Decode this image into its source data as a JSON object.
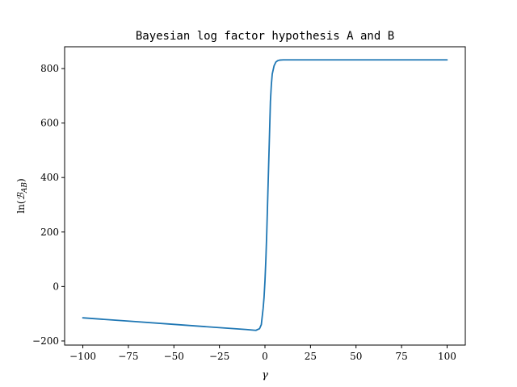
{
  "chart_data": {
    "type": "line",
    "title": "Bayesian log factor hypothesis A and B",
    "xlabel": "γ",
    "ylabel": "ln(ℬAB)",
    "ylabel_parts": {
      "prefix": "ln(",
      "symbol": "ℬ",
      "subscript": "AB",
      "suffix": ")"
    },
    "xlim": [
      -110,
      110
    ],
    "ylim": [
      -215,
      880
    ],
    "x_ticks": [
      -100,
      -75,
      -50,
      -25,
      0,
      25,
      50,
      75,
      100
    ],
    "x_tick_labels": [
      "−100",
      "−75",
      "−50",
      "−25",
      "0",
      "25",
      "50",
      "75",
      "100"
    ],
    "y_ticks": [
      -200,
      0,
      200,
      400,
      600,
      800
    ],
    "y_tick_labels": [
      "−200",
      "0",
      "200",
      "400",
      "600",
      "800"
    ],
    "grid": false,
    "legend": "none",
    "series": [
      {
        "color": "#1f77b4",
        "x": [
          -100,
          -75,
          -50,
          -25,
          -10,
          -5,
          -3,
          -2,
          -1,
          -0.5,
          0,
          0.5,
          1,
          1.5,
          2,
          2.5,
          3,
          3.5,
          4,
          5,
          6,
          7,
          8,
          10,
          15,
          25,
          50,
          75,
          100
        ],
        "y": [
          -115,
          -127,
          -139,
          -151,
          -158,
          -161,
          -155,
          -140,
          -80,
          -40,
          20,
          100,
          200,
          320,
          440,
          560,
          680,
          740,
          780,
          810,
          824,
          829,
          831,
          832,
          832,
          832,
          832,
          832,
          832
        ]
      }
    ]
  }
}
